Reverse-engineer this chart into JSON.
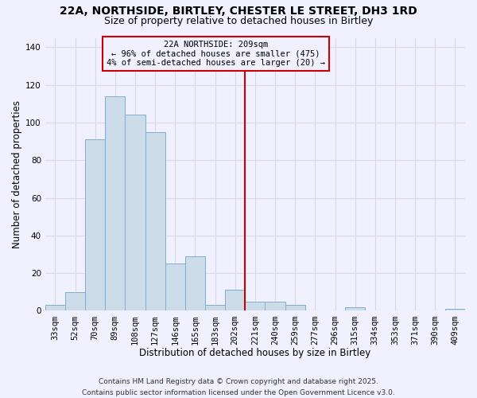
{
  "title1": "22A, NORTHSIDE, BIRTLEY, CHESTER LE STREET, DH3 1RD",
  "title2": "Size of property relative to detached houses in Birtley",
  "xlabel": "Distribution of detached houses by size in Birtley",
  "ylabel": "Number of detached properties",
  "bar_color": "#ccdce8",
  "bar_edge_color": "#7aafd4",
  "categories": [
    "33sqm",
    "52sqm",
    "70sqm",
    "89sqm",
    "108sqm",
    "127sqm",
    "146sqm",
    "165sqm",
    "183sqm",
    "202sqm",
    "221sqm",
    "240sqm",
    "259sqm",
    "277sqm",
    "296sqm",
    "315sqm",
    "334sqm",
    "353sqm",
    "371sqm",
    "390sqm",
    "409sqm"
  ],
  "values": [
    3,
    10,
    91,
    114,
    104,
    95,
    25,
    29,
    3,
    11,
    5,
    5,
    3,
    0,
    0,
    2,
    0,
    0,
    0,
    0,
    1
  ],
  "ylim": [
    0,
    145
  ],
  "yticks": [
    0,
    20,
    40,
    60,
    80,
    100,
    120,
    140
  ],
  "vline_x": 9.5,
  "vline_color": "#cc0000",
  "annotation_title": "22A NORTHSIDE: 209sqm",
  "annotation_line1": "← 96% of detached houses are smaller (475)",
  "annotation_line2": "4% of semi-detached houses are larger (20) →",
  "footnote1": "Contains HM Land Registry data © Crown copyright and database right 2025.",
  "footnote2": "Contains public sector information licensed under the Open Government Licence v3.0.",
  "background_color": "#f0f0ff",
  "grid_color": "#d8d8e8",
  "title_fontsize": 10,
  "subtitle_fontsize": 9,
  "axis_label_fontsize": 8.5,
  "tick_fontsize": 7.5,
  "footnote_fontsize": 6.5,
  "annotation_fontsize": 7.5
}
